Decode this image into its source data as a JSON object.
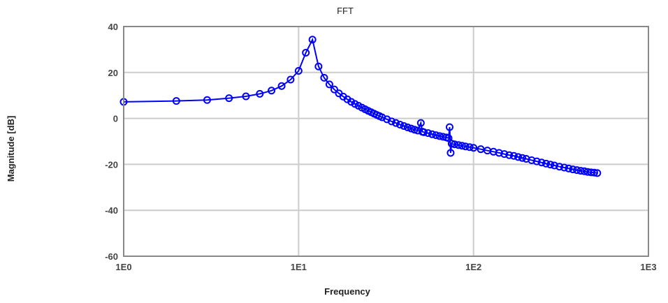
{
  "chart_data": {
    "type": "line",
    "title": "FFT",
    "xlabel": "Frequency",
    "ylabel": "Magnitude [dB]",
    "xscale": "log",
    "xlim": [
      1,
      1000
    ],
    "ylim": [
      -60,
      40
    ],
    "xticks": [
      "1E0",
      "1E1",
      "1E2",
      "1E3"
    ],
    "yticks": [
      "40",
      "20",
      "0",
      "-20",
      "-40",
      "-60"
    ],
    "grid": true,
    "marker": "circle",
    "color": "#0000ff",
    "x": [
      1,
      2,
      3,
      4,
      5,
      6,
      7,
      8,
      9,
      10,
      11,
      12,
      13,
      14,
      15,
      16,
      17,
      18,
      19,
      20,
      21,
      22,
      23,
      24,
      25,
      26,
      27,
      28,
      29,
      30,
      32,
      34,
      36,
      38,
      40,
      42,
      44,
      46,
      48,
      50,
      51,
      52,
      55,
      58,
      61,
      64,
      67,
      70,
      72,
      73,
      74,
      75,
      78,
      82,
      86,
      90,
      95,
      100,
      110,
      120,
      130,
      140,
      150,
      160,
      170,
      180,
      190,
      200,
      215,
      230,
      245,
      260,
      275,
      290,
      310,
      330,
      350,
      370,
      390,
      410,
      430,
      450,
      470,
      490,
      510
    ],
    "y": [
      7.2,
      7.6,
      8.0,
      8.8,
      9.6,
      10.7,
      12.1,
      14.1,
      16.9,
      20.7,
      28.6,
      34.3,
      22.6,
      17.7,
      14.8,
      12.6,
      10.9,
      9.5,
      8.3,
      7.2,
      6.3,
      5.5,
      4.7,
      4.0,
      3.3,
      2.7,
      2.1,
      1.5,
      1.0,
      0.5,
      -0.4,
      -1.3,
      -2.0,
      -2.7,
      -3.3,
      -3.9,
      -4.4,
      -4.9,
      -5.3,
      -2.0,
      -5.8,
      -6.0,
      -6.4,
      -6.9,
      -7.3,
      -7.7,
      -8.0,
      -8.3,
      -8.6,
      -3.8,
      -15.0,
      -11.0,
      -11.3,
      -11.6,
      -11.9,
      -12.2,
      -12.5,
      -12.8,
      -13.4,
      -14.0,
      -14.5,
      -15.0,
      -15.5,
      -16.0,
      -16.3,
      -16.8,
      -17.2,
      -17.6,
      -18.2,
      -18.7,
      -19.2,
      -19.7,
      -20.1,
      -20.5,
      -21.0,
      -21.4,
      -21.8,
      -22.2,
      -22.5,
      -22.8,
      -23.0,
      -23.3,
      -23.5,
      -23.6,
      -23.8
    ]
  }
}
